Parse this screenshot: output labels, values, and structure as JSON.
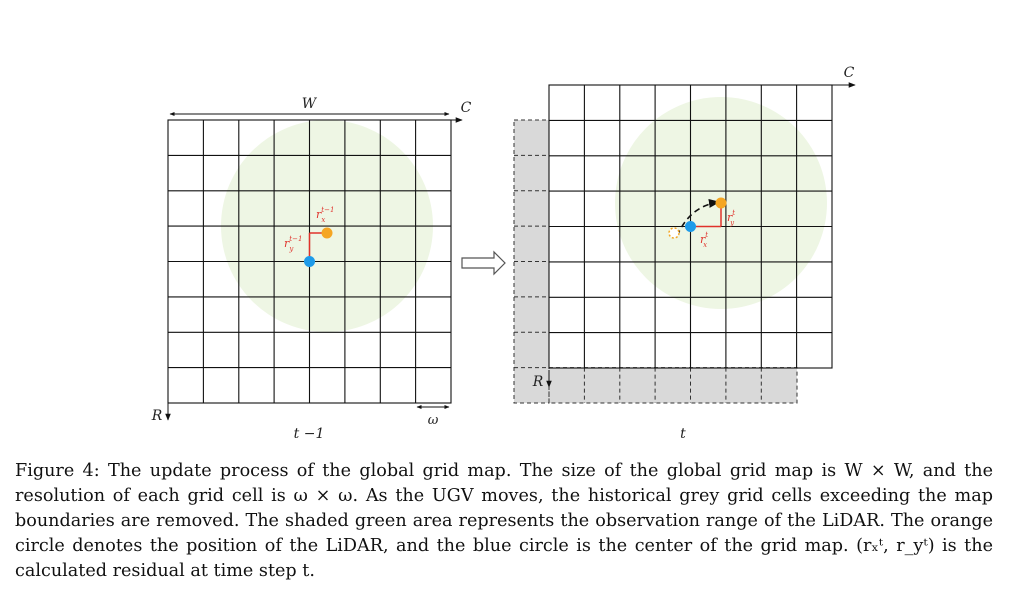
{
  "figure": {
    "left_panel": {
      "width_label": "W",
      "col_label": "C",
      "row_label": "R",
      "cell_label": "ω",
      "time_label": "t −1",
      "rx_label": "r",
      "rx_sup": "t−1",
      "rx_sub": "x",
      "ry_label": "r",
      "ry_sup": "t−1",
      "ry_sub": "y"
    },
    "right_panel": {
      "col_label": "C",
      "row_label": "R",
      "time_label": "t",
      "rx_label": "r",
      "rx_sup": "t",
      "rx_sub": "x",
      "ry_label": "r",
      "ry_sup": "t",
      "ry_sub": "y"
    },
    "colors": {
      "grid_line": "#111111",
      "green_area": "#eef6e4",
      "grey_cells": "#d9d9d9",
      "lidar": "#f5a623",
      "center": "#1e9be9",
      "residual": "#e0322b"
    }
  },
  "caption": {
    "text": "Figure 4: The update process of the global grid map. The size of the global grid map is W × W, and the resolution of each grid cell is ω × ω. As the UGV moves, the historical grey grid cells exceeding the map boundaries are removed. The shaded green area represents the observation range of the LiDAR. The orange circle denotes the position of the LiDAR, and the blue circle is the center of the grid map. (rₓᵗ, r_yᵗ) is the calculated residual at time step t."
  }
}
